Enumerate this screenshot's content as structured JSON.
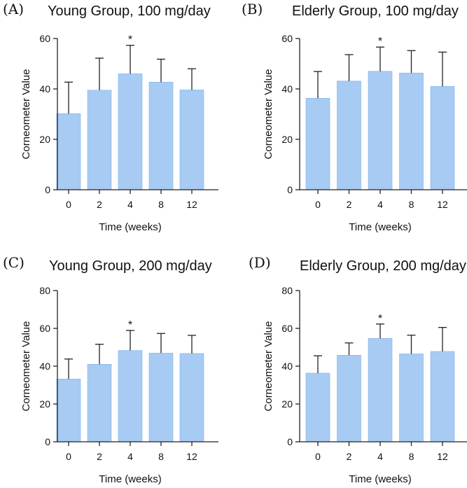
{
  "colors": {
    "bar": "#a7cbf3",
    "bar_stroke": "#7eb3ec",
    "axis": "#222222",
    "error": "#222222"
  },
  "chart_data": [
    {
      "type": "bar",
      "panel_label": "(A)",
      "title": "Young Group, 100 mg/day",
      "xlabel": "Time (weeks)",
      "ylabel": "Corneometer Value",
      "categories": [
        "0",
        "2",
        "4",
        "8",
        "12"
      ],
      "values": [
        30.2,
        39.5,
        46.0,
        42.7,
        39.6
      ],
      "errors": [
        12.5,
        12.7,
        11.3,
        9.1,
        8.4
      ],
      "significance": [
        "",
        "",
        "*",
        "",
        ""
      ],
      "ylim": [
        0,
        60
      ],
      "yticks": [
        "0",
        "20",
        "40",
        "60"
      ]
    },
    {
      "type": "bar",
      "panel_label": "(B)",
      "title": "Elderly Group, 100 mg/day",
      "xlabel": "Time (weeks)",
      "ylabel": "Corneometer Value",
      "categories": [
        "0",
        "2",
        "4",
        "8",
        "12"
      ],
      "values": [
        36.3,
        43.1,
        47.0,
        46.3,
        41.0
      ],
      "errors": [
        10.6,
        10.5,
        9.6,
        8.9,
        13.6
      ],
      "significance": [
        "",
        "",
        "*",
        "",
        ""
      ],
      "ylim": [
        0,
        60
      ],
      "yticks": [
        "0",
        "20",
        "40",
        "60"
      ]
    },
    {
      "type": "bar",
      "panel_label": "(C)",
      "title": "Young Group, 200 mg/day",
      "xlabel": "Time (weeks)",
      "ylabel": "Corneometer Value",
      "categories": [
        "0",
        "2",
        "4",
        "8",
        "12"
      ],
      "values": [
        33.2,
        41.0,
        48.3,
        46.9,
        46.7
      ],
      "errors": [
        10.6,
        10.6,
        10.6,
        10.4,
        9.6
      ],
      "significance": [
        "",
        "",
        "*",
        "",
        ""
      ],
      "ylim": [
        0,
        80
      ],
      "yticks": [
        "0",
        "20",
        "40",
        "60",
        "80"
      ]
    },
    {
      "type": "bar",
      "panel_label": "(D)",
      "title": "Elderly Group, 200 mg/day",
      "xlabel": "Time (weeks)",
      "ylabel": "Corneometer Value",
      "categories": [
        "0",
        "2",
        "4",
        "8",
        "12"
      ],
      "values": [
        36.3,
        45.8,
        54.7,
        46.5,
        47.8
      ],
      "errors": [
        9.2,
        6.5,
        7.6,
        9.9,
        12.7
      ],
      "significance": [
        "",
        "",
        "*",
        "",
        ""
      ],
      "ylim": [
        0,
        80
      ],
      "yticks": [
        "0",
        "20",
        "40",
        "60",
        "80"
      ]
    }
  ]
}
